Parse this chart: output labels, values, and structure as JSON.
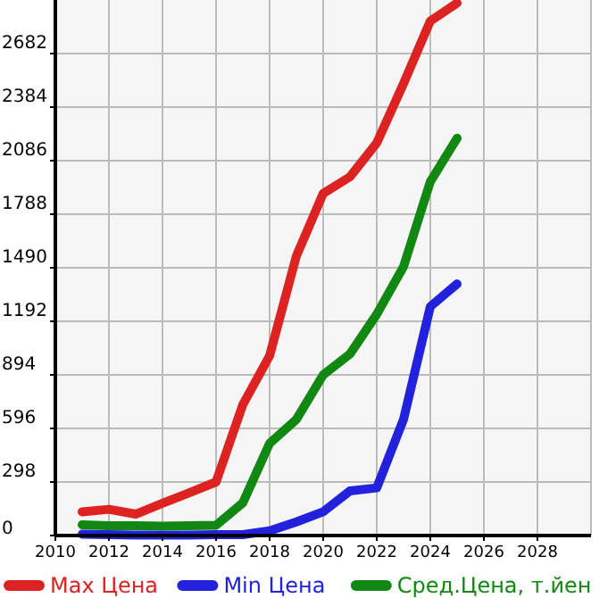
{
  "chart_data": {
    "type": "line",
    "x": [
      2011,
      2012,
      2013,
      2014,
      2015,
      2016,
      2017,
      2018,
      2019,
      2020,
      2021,
      2022,
      2023,
      2024,
      2025
    ],
    "xlim": [
      2010,
      2030
    ],
    "xticks": [
      2010,
      2012,
      2014,
      2016,
      2018,
      2020,
      2022,
      2024,
      2026,
      2028
    ],
    "ylim": [
      0,
      2980
    ],
    "yticks": [
      0,
      298,
      596,
      894,
      1192,
      1490,
      1788,
      2086,
      2384,
      2682
    ],
    "grid": true,
    "legend": "bottom",
    "marker": "none",
    "line_style": "solid",
    "series": [
      {
        "name": "Max Цена",
        "color": "#dd2222",
        "values": [
          132,
          146,
          119,
          179,
          238,
          298,
          728,
          1000,
          1556,
          1903,
          1996,
          2185,
          2515,
          2863,
          2963
        ]
      },
      {
        "name": "Min Цена",
        "color": "#2222dd",
        "values": [
          7,
          5,
          3,
          2,
          2,
          5,
          5,
          26,
          76,
          132,
          248,
          265,
          646,
          1274,
          1400
        ]
      },
      {
        "name": "Сред.Цена, т.йен",
        "color": "#118811",
        "values": [
          60,
          55,
          55,
          52,
          55,
          57,
          182,
          513,
          646,
          894,
          1010,
          1231,
          1496,
          1969,
          2211
        ]
      }
    ]
  }
}
